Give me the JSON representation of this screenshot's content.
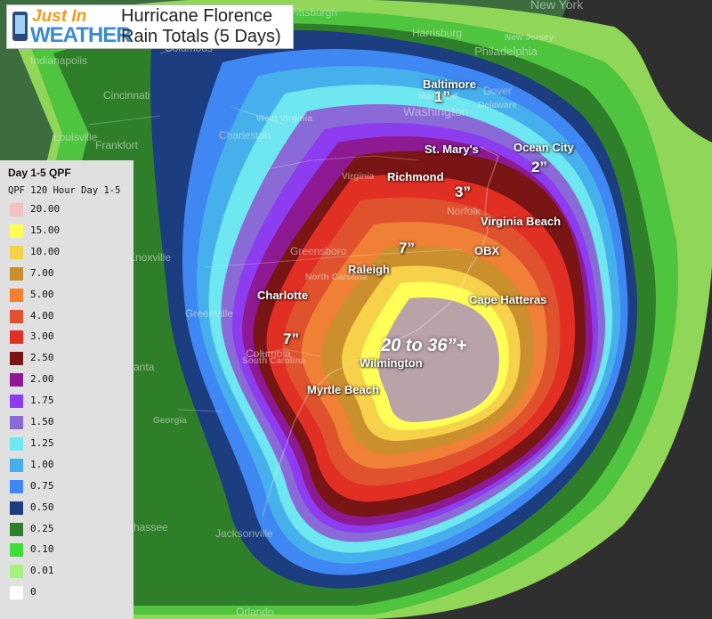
{
  "header": {
    "logo_line1": "Just In",
    "logo_line2": "WEATHER",
    "title_line1": "Hurricane Florence",
    "title_line2": "Rain Totals (5 Days)"
  },
  "legend": {
    "title": "Day 1-5 QPF",
    "subtitle": "QPF 120 Hour Day 1-5",
    "items": [
      {
        "value": "20.00",
        "color": "#f3c1c1"
      },
      {
        "value": "15.00",
        "color": "#ffff55"
      },
      {
        "value": "10.00",
        "color": "#f6d24a"
      },
      {
        "value": "7.00",
        "color": "#cc8f2e"
      },
      {
        "value": "5.00",
        "color": "#ef8035"
      },
      {
        "value": "4.00",
        "color": "#e0522e"
      },
      {
        "value": "3.00",
        "color": "#e12f24"
      },
      {
        "value": "2.50",
        "color": "#7a1515"
      },
      {
        "value": "2.00",
        "color": "#8d1a93"
      },
      {
        "value": "1.75",
        "color": "#8d3cf0"
      },
      {
        "value": "1.50",
        "color": "#8a6ad6"
      },
      {
        "value": "1.25",
        "color": "#6ee7f0"
      },
      {
        "value": "1.00",
        "color": "#46b0ec"
      },
      {
        "value": "0.75",
        "color": "#3f87f2"
      },
      {
        "value": "0.50",
        "color": "#1c3d80"
      },
      {
        "value": "0.25",
        "color": "#2f7f2a"
      },
      {
        "value": "0.10",
        "color": "#3fdc3a"
      },
      {
        "value": "0.01",
        "color": "#a5f27e"
      },
      {
        "value": "0",
        "color": "#ffffff"
      }
    ]
  },
  "map": {
    "white_cities": {
      "baltimore": "Baltimore",
      "st_marys": "St. Mary's",
      "ocean_city": "Ocean City",
      "richmond": "Richmond",
      "virginia_beach": "Virginia Beach",
      "obx": "OBX",
      "raleigh": "Raleigh",
      "charlotte": "Charlotte",
      "cape_hatteras": "Cape Hatteras",
      "wilmington": "Wilmington",
      "myrtle_beach": "Myrtle Beach"
    },
    "totals": {
      "baltimore": "1”",
      "ocean_city": "2”",
      "richmond": "3”",
      "raleigh": "7”",
      "columbia": "7”",
      "center": "20 to 36”+"
    },
    "base_labels": {
      "new_york": "New York",
      "pittsburgh": "Pittsburgh",
      "harrisburg": "Harrisburg",
      "philadelphia": "Philadelphia",
      "indianapolis": "Indianapolis",
      "columbus": "Columbus",
      "cincinnati": "Cincinnati",
      "louisville": "Louisville",
      "frankfort": "Frankfort",
      "charleston": "Charleston",
      "washington": "Washington",
      "dover": "Dover",
      "norfolk": "Norfolk",
      "greensboro": "Greensboro",
      "knoxville": "Knoxville",
      "greenville": "Greenville",
      "columbia": "Columbia",
      "atlanta": "anta",
      "tallahassee": "hassee",
      "jacksonville": "Jacksonville",
      "orlando": "Orlando",
      "west_virginia": "West Virginia",
      "virginia": "Virginia",
      "north_carolina": "North Carolina",
      "south_carolina": "South Carolina",
      "georgia": "Georgia",
      "maryland": "Maryland",
      "delaware": "Delaware",
      "new_jersey": "New Jersey"
    }
  }
}
